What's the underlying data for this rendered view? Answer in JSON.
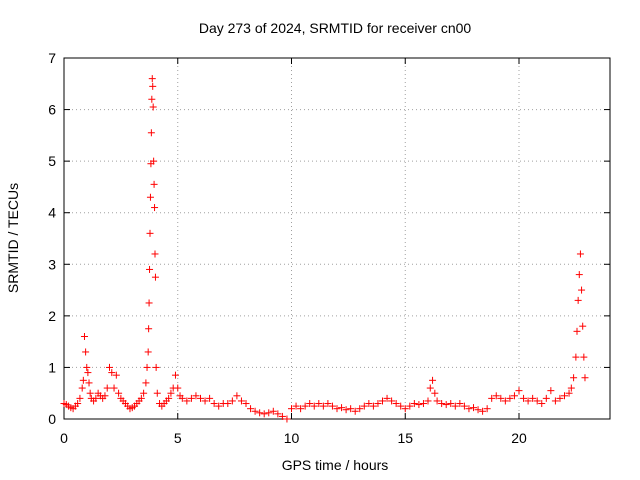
{
  "chart_data": {
    "type": "scatter",
    "title": "Day 273 of 2024, SRMTID for receiver cn00",
    "xlabel": "GPS time / hours",
    "ylabel": "SRMTID / TECUs",
    "xlim": [
      0,
      24
    ],
    "ylim": [
      0,
      7
    ],
    "x_ticks": [
      "0",
      "5",
      "10",
      "15",
      "20"
    ],
    "y_ticks": [
      "0",
      "1",
      "2",
      "3",
      "4",
      "5",
      "6",
      "7"
    ],
    "grid": true,
    "marker": "+",
    "series": [
      {
        "color": "#ff0000",
        "points": [
          [
            0.0,
            0.3
          ],
          [
            0.1,
            0.28
          ],
          [
            0.2,
            0.25
          ],
          [
            0.3,
            0.22
          ],
          [
            0.4,
            0.2
          ],
          [
            0.5,
            0.25
          ],
          [
            0.6,
            0.3
          ],
          [
            0.7,
            0.4
          ],
          [
            0.8,
            0.6
          ],
          [
            0.85,
            0.75
          ],
          [
            0.9,
            1.6
          ],
          [
            0.95,
            1.3
          ],
          [
            1.0,
            1.0
          ],
          [
            1.05,
            0.9
          ],
          [
            1.1,
            0.7
          ],
          [
            1.15,
            0.5
          ],
          [
            1.2,
            0.4
          ],
          [
            1.3,
            0.35
          ],
          [
            1.4,
            0.4
          ],
          [
            1.5,
            0.5
          ],
          [
            1.6,
            0.45
          ],
          [
            1.7,
            0.4
          ],
          [
            1.8,
            0.45
          ],
          [
            1.9,
            0.6
          ],
          [
            2.0,
            1.0
          ],
          [
            2.1,
            0.9
          ],
          [
            2.2,
            0.6
          ],
          [
            2.3,
            0.85
          ],
          [
            2.4,
            0.5
          ],
          [
            2.5,
            0.4
          ],
          [
            2.6,
            0.35
          ],
          [
            2.7,
            0.3
          ],
          [
            2.8,
            0.25
          ],
          [
            2.9,
            0.2
          ],
          [
            3.0,
            0.22
          ],
          [
            3.1,
            0.25
          ],
          [
            3.2,
            0.3
          ],
          [
            3.3,
            0.35
          ],
          [
            3.4,
            0.4
          ],
          [
            3.5,
            0.5
          ],
          [
            3.6,
            0.7
          ],
          [
            3.65,
            1.0
          ],
          [
            3.7,
            1.3
          ],
          [
            3.72,
            1.75
          ],
          [
            3.74,
            2.25
          ],
          [
            3.76,
            2.9
          ],
          [
            3.78,
            3.6
          ],
          [
            3.8,
            4.3
          ],
          [
            3.82,
            4.95
          ],
          [
            3.84,
            5.55
          ],
          [
            3.86,
            6.2
          ],
          [
            3.88,
            6.6
          ],
          [
            3.9,
            6.45
          ],
          [
            3.92,
            6.05
          ],
          [
            3.94,
            5.0
          ],
          [
            3.96,
            4.55
          ],
          [
            3.98,
            4.1
          ],
          [
            4.0,
            3.2
          ],
          [
            4.02,
            2.75
          ],
          [
            4.05,
            1.0
          ],
          [
            4.1,
            0.5
          ],
          [
            4.2,
            0.3
          ],
          [
            4.3,
            0.25
          ],
          [
            4.4,
            0.3
          ],
          [
            4.5,
            0.35
          ],
          [
            4.6,
            0.4
          ],
          [
            4.7,
            0.5
          ],
          [
            4.8,
            0.6
          ],
          [
            4.9,
            0.85
          ],
          [
            5.0,
            0.6
          ],
          [
            5.1,
            0.45
          ],
          [
            5.2,
            0.4
          ],
          [
            5.4,
            0.35
          ],
          [
            5.6,
            0.4
          ],
          [
            5.8,
            0.45
          ],
          [
            6.0,
            0.4
          ],
          [
            6.2,
            0.35
          ],
          [
            6.4,
            0.4
          ],
          [
            6.6,
            0.3
          ],
          [
            6.8,
            0.25
          ],
          [
            7.0,
            0.3
          ],
          [
            7.2,
            0.3
          ],
          [
            7.4,
            0.35
          ],
          [
            7.6,
            0.45
          ],
          [
            7.8,
            0.35
          ],
          [
            8.0,
            0.3
          ],
          [
            8.2,
            0.2
          ],
          [
            8.4,
            0.15
          ],
          [
            8.6,
            0.12
          ],
          [
            8.8,
            0.1
          ],
          [
            9.0,
            0.12
          ],
          [
            9.2,
            0.15
          ],
          [
            9.4,
            0.1
          ],
          [
            9.6,
            0.05
          ],
          [
            9.8,
            0.0
          ],
          [
            10.0,
            0.2
          ],
          [
            10.2,
            0.25
          ],
          [
            10.4,
            0.2
          ],
          [
            10.6,
            0.25
          ],
          [
            10.8,
            0.3
          ],
          [
            11.0,
            0.25
          ],
          [
            11.2,
            0.3
          ],
          [
            11.4,
            0.25
          ],
          [
            11.6,
            0.3
          ],
          [
            11.8,
            0.25
          ],
          [
            12.0,
            0.2
          ],
          [
            12.2,
            0.22
          ],
          [
            12.4,
            0.18
          ],
          [
            12.6,
            0.2
          ],
          [
            12.8,
            0.15
          ],
          [
            13.0,
            0.2
          ],
          [
            13.2,
            0.25
          ],
          [
            13.4,
            0.3
          ],
          [
            13.6,
            0.25
          ],
          [
            13.8,
            0.3
          ],
          [
            14.0,
            0.35
          ],
          [
            14.2,
            0.4
          ],
          [
            14.4,
            0.35
          ],
          [
            14.6,
            0.3
          ],
          [
            14.8,
            0.25
          ],
          [
            15.0,
            0.2
          ],
          [
            15.2,
            0.25
          ],
          [
            15.4,
            0.3
          ],
          [
            15.6,
            0.28
          ],
          [
            15.8,
            0.3
          ],
          [
            16.0,
            0.35
          ],
          [
            16.1,
            0.6
          ],
          [
            16.2,
            0.75
          ],
          [
            16.3,
            0.5
          ],
          [
            16.4,
            0.35
          ],
          [
            16.6,
            0.3
          ],
          [
            16.8,
            0.28
          ],
          [
            17.0,
            0.3
          ],
          [
            17.2,
            0.25
          ],
          [
            17.4,
            0.3
          ],
          [
            17.6,
            0.25
          ],
          [
            17.8,
            0.2
          ],
          [
            18.0,
            0.22
          ],
          [
            18.2,
            0.18
          ],
          [
            18.4,
            0.15
          ],
          [
            18.6,
            0.2
          ],
          [
            18.8,
            0.4
          ],
          [
            19.0,
            0.45
          ],
          [
            19.2,
            0.4
          ],
          [
            19.4,
            0.35
          ],
          [
            19.6,
            0.4
          ],
          [
            19.8,
            0.45
          ],
          [
            20.0,
            0.55
          ],
          [
            20.2,
            0.4
          ],
          [
            20.4,
            0.35
          ],
          [
            20.6,
            0.4
          ],
          [
            20.8,
            0.35
          ],
          [
            21.0,
            0.3
          ],
          [
            21.2,
            0.4
          ],
          [
            21.4,
            0.55
          ],
          [
            21.6,
            0.35
          ],
          [
            21.8,
            0.4
          ],
          [
            22.0,
            0.45
          ],
          [
            22.2,
            0.5
          ],
          [
            22.3,
            0.6
          ],
          [
            22.4,
            0.8
          ],
          [
            22.5,
            1.2
          ],
          [
            22.55,
            1.7
          ],
          [
            22.6,
            2.3
          ],
          [
            22.65,
            2.8
          ],
          [
            22.7,
            3.2
          ],
          [
            22.75,
            2.5
          ],
          [
            22.8,
            1.8
          ],
          [
            22.85,
            1.2
          ],
          [
            22.9,
            0.8
          ]
        ]
      }
    ]
  }
}
